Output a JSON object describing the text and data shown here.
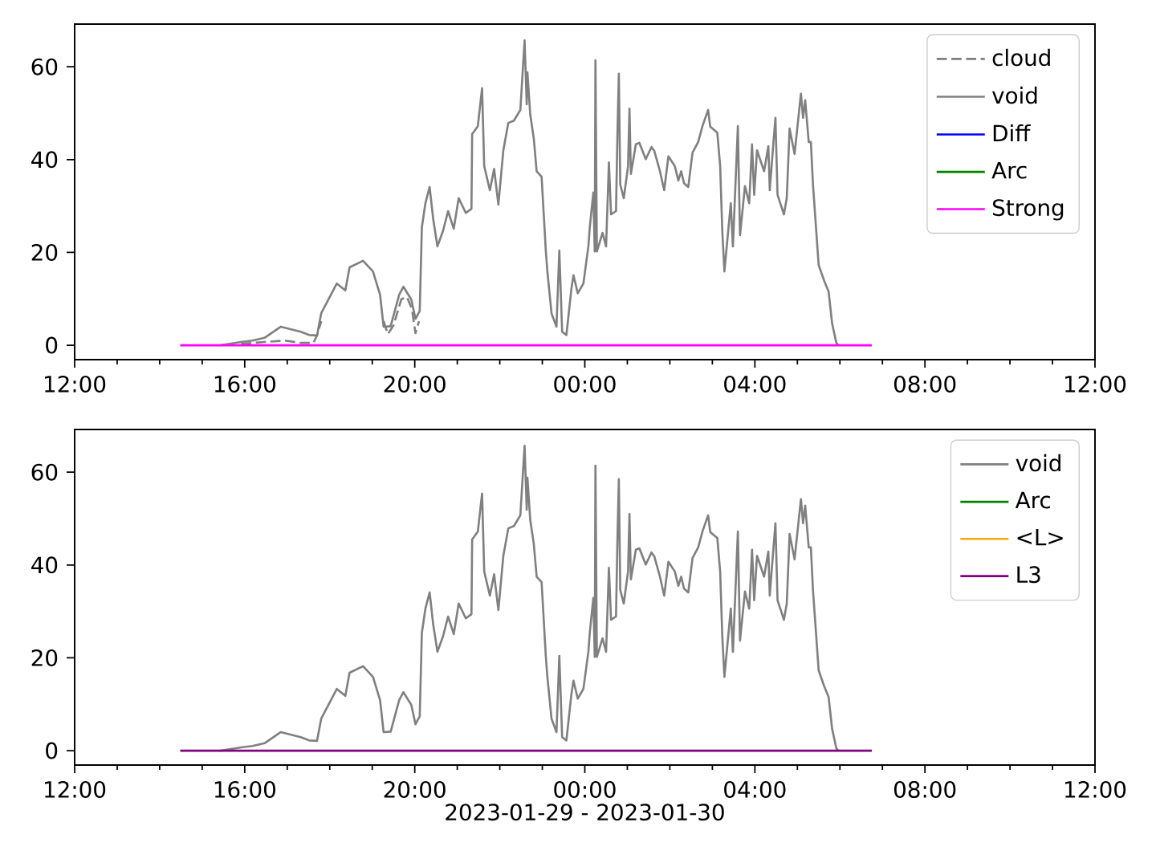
{
  "chart_data": [
    {
      "type": "line",
      "xlim": [
        "2023-01-29T12:00",
        "2023-01-30T12:00"
      ],
      "ylim": [
        -3.1,
        69.2
      ],
      "xticks": [
        {
          "value": "2023-01-29T12:00",
          "label": "12:00"
        },
        {
          "value": "2023-01-29T16:00",
          "label": "16:00"
        },
        {
          "value": "2023-01-29T20:00",
          "label": "20:00"
        },
        {
          "value": "2023-01-30T00:00",
          "label": "00:00"
        },
        {
          "value": "2023-01-30T04:00",
          "label": "04:00"
        },
        {
          "value": "2023-01-30T08:00",
          "label": "08:00"
        },
        {
          "value": "2023-01-30T12:00",
          "label": "12:00"
        }
      ],
      "yticks": [
        0,
        20,
        40,
        60
      ],
      "legend": "top right",
      "marker": "none",
      "series": [
        {
          "name": "cloud",
          "color": "#808080",
          "line_style": "dashed",
          "x": [
            "2023-01-29T15:55",
            "2023-01-29T16:28",
            "2023-01-29T16:57",
            "2023-01-29T17:19",
            "2023-01-29T17:37",
            "2023-01-29T17:42",
            "2023-01-29T17:48",
            "2023-01-29T18:30",
            "2023-01-29T19:16",
            "2023-01-29T19:22",
            "2023-01-29T19:30",
            "2023-01-29T19:41",
            "2023-01-29T19:49",
            "2023-01-29T19:56",
            "2023-01-29T20:01",
            "2023-01-29T20:06"
          ],
          "values": [
            0.3,
            0.7,
            1.0,
            0.5,
            0.5,
            2.1,
            5.2,
            null,
            5.2,
            2.4,
            4.3,
            9.9,
            10.4,
            7.8,
            2.6,
            5.2
          ]
        },
        {
          "name": "void",
          "color": "#808080",
          "x": [
            "2023-01-29T15:26",
            "2023-01-29T15:55",
            "2023-01-29T16:11",
            "2023-01-29T16:28",
            "2023-01-29T16:51",
            "2023-01-29T17:19",
            "2023-01-29T17:31",
            "2023-01-29T17:42",
            "2023-01-29T17:48",
            "2023-01-29T18:10",
            "2023-01-29T18:22",
            "2023-01-29T18:28",
            "2023-01-29T18:47",
            "2023-01-29T19:01",
            "2023-01-29T19:11",
            "2023-01-29T19:16",
            "2023-01-29T19:26",
            "2023-01-29T19:38",
            "2023-01-29T19:44",
            "2023-01-29T19:55",
            "2023-01-29T20:01",
            "2023-01-29T20:07",
            "2023-01-29T20:10",
            "2023-01-29T20:15",
            "2023-01-29T20:21",
            "2023-01-29T20:26",
            "2023-01-29T20:32",
            "2023-01-29T20:40",
            "2023-01-29T20:47",
            "2023-01-29T20:55",
            "2023-01-29T21:02",
            "2023-01-29T21:12",
            "2023-01-29T21:20",
            "2023-01-29T21:21",
            "2023-01-29T21:29",
            "2023-01-29T21:35",
            "2023-01-29T21:38",
            "2023-01-29T21:46",
            "2023-01-29T21:52",
            "2023-01-29T21:58",
            "2023-01-29T22:05",
            "2023-01-29T22:12",
            "2023-01-29T22:20",
            "2023-01-29T22:29",
            "2023-01-29T22:35",
            "2023-01-29T22:38",
            "2023-01-29T22:39",
            "2023-01-29T22:43",
            "2023-01-29T22:48",
            "2023-01-29T22:52",
            "2023-01-29T22:59",
            "2023-01-29T23:05",
            "2023-01-29T23:07",
            "2023-01-29T23:13",
            "2023-01-29T23:20",
            "2023-01-29T23:24",
            "2023-01-29T23:28",
            "2023-01-29T23:34",
            "2023-01-29T23:41",
            "2023-01-29T23:44",
            "2023-01-29T23:50",
            "2023-01-29T23:58",
            "2023-01-30T00:05",
            "2023-01-30T00:07",
            "2023-01-30T00:12",
            "2023-01-30T00:14",
            "2023-01-30T00:15",
            "2023-01-30T00:17",
            "2023-01-30T00:25",
            "2023-01-30T00:30",
            "2023-01-30T00:34",
            "2023-01-30T00:37",
            "2023-01-30T00:44",
            "2023-01-30T00:46",
            "2023-01-30T00:48",
            "2023-01-30T00:50",
            "2023-01-30T00:55",
            "2023-01-30T01:01",
            "2023-01-30T01:03",
            "2023-01-30T01:05",
            "2023-01-30T01:12",
            "2023-01-30T01:17",
            "2023-01-30T01:26",
            "2023-01-30T01:34",
            "2023-01-30T01:38",
            "2023-01-30T01:46",
            "2023-01-30T01:52",
            "2023-01-30T01:58",
            "2023-01-30T02:07",
            "2023-01-30T02:12",
            "2023-01-30T02:16",
            "2023-01-30T02:20",
            "2023-01-30T02:26",
            "2023-01-30T02:32",
            "2023-01-30T02:40",
            "2023-01-30T02:46",
            "2023-01-30T02:54",
            "2023-01-30T02:57",
            "2023-01-30T03:07",
            "2023-01-30T03:11",
            "2023-01-30T03:14",
            "2023-01-30T03:17",
            "2023-01-30T03:26",
            "2023-01-30T03:29",
            "2023-01-30T03:36",
            "2023-01-30T03:39",
            "2023-01-30T03:46",
            "2023-01-30T03:52",
            "2023-01-30T03:56",
            "2023-01-30T03:59",
            "2023-01-30T04:03",
            "2023-01-30T04:13",
            "2023-01-30T04:19",
            "2023-01-30T04:21",
            "2023-01-30T04:26",
            "2023-01-30T04:29",
            "2023-01-30T04:32",
            "2023-01-30T04:41",
            "2023-01-30T04:45",
            "2023-01-30T04:49",
            "2023-01-30T04:56",
            "2023-01-30T05:05",
            "2023-01-30T05:08",
            "2023-01-30T05:11",
            "2023-01-30T05:16",
            "2023-01-30T05:19",
            "2023-01-30T05:22",
            "2023-01-30T05:30",
            "2023-01-30T05:38",
            "2023-01-30T05:44",
            "2023-01-30T05:49",
            "2023-01-30T05:55",
            "2023-01-30T05:58"
          ],
          "values": [
            0,
            0.7,
            1.0,
            1.6,
            4.0,
            2.9,
            2.2,
            2.1,
            6.9,
            13.3,
            11.8,
            16.8,
            18.2,
            15.9,
            10.9,
            4.0,
            4.1,
            10.9,
            12.6,
            9.9,
            5.7,
            7.4,
            25.4,
            30.6,
            34.1,
            27.2,
            21.3,
            24.7,
            28.9,
            25.1,
            31.7,
            28.5,
            29.4,
            45.5,
            47.2,
            55.4,
            38.6,
            33.4,
            38.0,
            30.3,
            42.0,
            47.9,
            48.4,
            50.7,
            65.7,
            51.9,
            58.8,
            49.7,
            44.5,
            37.5,
            36.3,
            20.2,
            16.1,
            6.9,
            4.0,
            20.4,
            2.9,
            2.2,
            12.1,
            15.1,
            11.2,
            13.3,
            21.3,
            25.4,
            32.9,
            20.2,
            61.4,
            20.2,
            24.2,
            21.3,
            39.4,
            28.2,
            28.9,
            45.5,
            58.5,
            34.6,
            31.7,
            38.6,
            51.0,
            36.9,
            43.3,
            43.6,
            40.1,
            42.7,
            41.9,
            37.5,
            33.4,
            40.7,
            38.6,
            35.5,
            37.5,
            34.9,
            34.1,
            41.5,
            43.8,
            47.2,
            50.7,
            47.1,
            45.8,
            38.6,
            24.7,
            15.9,
            30.6,
            21.3,
            47.2,
            23.7,
            34.3,
            30.6,
            43.3,
            32.4,
            42.0,
            37.5,
            42.9,
            33.4,
            43.3,
            49.0,
            32.4,
            28.2,
            31.7,
            46.7,
            41.2,
            54.2,
            49.0,
            52.8,
            43.8,
            43.8,
            34.6,
            17.3,
            13.8,
            11.6,
            4.7,
            0.5,
            0
          ]
        },
        {
          "name": "Diff",
          "color": "#0000ff"
        },
        {
          "name": "Arc",
          "color": "#008000"
        },
        {
          "name": "Strong",
          "color": "#ff00ff",
          "x": [
            "2023-01-29T14:29",
            "2023-01-30T06:45"
          ],
          "values": [
            0,
            0
          ]
        }
      ]
    },
    {
      "type": "line",
      "xlabel": "2023-01-29 - 2023-01-30",
      "xlim": [
        "2023-01-29T12:00",
        "2023-01-30T12:00"
      ],
      "ylim": [
        -3.1,
        69.2
      ],
      "xticks": [
        {
          "value": "2023-01-29T12:00",
          "label": "12:00"
        },
        {
          "value": "2023-01-29T16:00",
          "label": "16:00"
        },
        {
          "value": "2023-01-29T20:00",
          "label": "20:00"
        },
        {
          "value": "2023-01-30T00:00",
          "label": "00:00"
        },
        {
          "value": "2023-01-30T04:00",
          "label": "04:00"
        },
        {
          "value": "2023-01-30T08:00",
          "label": "08:00"
        },
        {
          "value": "2023-01-30T12:00",
          "label": "12:00"
        }
      ],
      "yticks": [
        0,
        20,
        40,
        60
      ],
      "legend": "top right",
      "marker": "none",
      "series": [
        {
          "name": "void",
          "color": "#808080",
          "x": [
            "2023-01-29T15:26",
            "2023-01-29T15:55",
            "2023-01-29T16:11",
            "2023-01-29T16:28",
            "2023-01-29T16:51",
            "2023-01-29T17:19",
            "2023-01-29T17:31",
            "2023-01-29T17:42",
            "2023-01-29T17:48",
            "2023-01-29T18:10",
            "2023-01-29T18:22",
            "2023-01-29T18:28",
            "2023-01-29T18:47",
            "2023-01-29T19:01",
            "2023-01-29T19:11",
            "2023-01-29T19:16",
            "2023-01-29T19:26",
            "2023-01-29T19:38",
            "2023-01-29T19:44",
            "2023-01-29T19:55",
            "2023-01-29T20:01",
            "2023-01-29T20:07",
            "2023-01-29T20:10",
            "2023-01-29T20:15",
            "2023-01-29T20:21",
            "2023-01-29T20:26",
            "2023-01-29T20:32",
            "2023-01-29T20:40",
            "2023-01-29T20:47",
            "2023-01-29T20:55",
            "2023-01-29T21:02",
            "2023-01-29T21:12",
            "2023-01-29T21:20",
            "2023-01-29T21:21",
            "2023-01-29T21:29",
            "2023-01-29T21:35",
            "2023-01-29T21:38",
            "2023-01-29T21:46",
            "2023-01-29T21:52",
            "2023-01-29T21:58",
            "2023-01-29T22:05",
            "2023-01-29T22:12",
            "2023-01-29T22:20",
            "2023-01-29T22:29",
            "2023-01-29T22:35",
            "2023-01-29T22:38",
            "2023-01-29T22:39",
            "2023-01-29T22:43",
            "2023-01-29T22:48",
            "2023-01-29T22:52",
            "2023-01-29T22:59",
            "2023-01-29T23:05",
            "2023-01-29T23:07",
            "2023-01-29T23:13",
            "2023-01-29T23:20",
            "2023-01-29T23:24",
            "2023-01-29T23:28",
            "2023-01-29T23:34",
            "2023-01-29T23:41",
            "2023-01-29T23:44",
            "2023-01-29T23:50",
            "2023-01-29T23:58",
            "2023-01-30T00:05",
            "2023-01-30T00:07",
            "2023-01-30T00:12",
            "2023-01-30T00:14",
            "2023-01-30T00:15",
            "2023-01-30T00:17",
            "2023-01-30T00:25",
            "2023-01-30T00:30",
            "2023-01-30T00:34",
            "2023-01-30T00:37",
            "2023-01-30T00:44",
            "2023-01-30T00:46",
            "2023-01-30T00:48",
            "2023-01-30T00:50",
            "2023-01-30T00:55",
            "2023-01-30T01:01",
            "2023-01-30T01:03",
            "2023-01-30T01:05",
            "2023-01-30T01:12",
            "2023-01-30T01:17",
            "2023-01-30T01:26",
            "2023-01-30T01:34",
            "2023-01-30T01:38",
            "2023-01-30T01:46",
            "2023-01-30T01:52",
            "2023-01-30T01:58",
            "2023-01-30T02:07",
            "2023-01-30T02:12",
            "2023-01-30T02:16",
            "2023-01-30T02:20",
            "2023-01-30T02:26",
            "2023-01-30T02:32",
            "2023-01-30T02:40",
            "2023-01-30T02:46",
            "2023-01-30T02:54",
            "2023-01-30T02:57",
            "2023-01-30T03:07",
            "2023-01-30T03:11",
            "2023-01-30T03:14",
            "2023-01-30T03:17",
            "2023-01-30T03:26",
            "2023-01-30T03:29",
            "2023-01-30T03:36",
            "2023-01-30T03:39",
            "2023-01-30T03:46",
            "2023-01-30T03:52",
            "2023-01-30T03:56",
            "2023-01-30T03:59",
            "2023-01-30T04:03",
            "2023-01-30T04:13",
            "2023-01-30T04:19",
            "2023-01-30T04:21",
            "2023-01-30T04:26",
            "2023-01-30T04:29",
            "2023-01-30T04:32",
            "2023-01-30T04:41",
            "2023-01-30T04:45",
            "2023-01-30T04:49",
            "2023-01-30T04:56",
            "2023-01-30T05:05",
            "2023-01-30T05:08",
            "2023-01-30T05:11",
            "2023-01-30T05:16",
            "2023-01-30T05:19",
            "2023-01-30T05:22",
            "2023-01-30T05:30",
            "2023-01-30T05:38",
            "2023-01-30T05:44",
            "2023-01-30T05:49",
            "2023-01-30T05:55",
            "2023-01-30T05:58"
          ],
          "values": [
            0,
            0.7,
            1.0,
            1.6,
            4.0,
            2.9,
            2.2,
            2.1,
            6.9,
            13.3,
            11.8,
            16.8,
            18.2,
            15.9,
            10.9,
            4.0,
            4.1,
            10.9,
            12.6,
            9.9,
            5.7,
            7.4,
            25.4,
            30.6,
            34.1,
            27.2,
            21.3,
            24.7,
            28.9,
            25.1,
            31.7,
            28.5,
            29.4,
            45.5,
            47.2,
            55.4,
            38.6,
            33.4,
            38.0,
            30.3,
            42.0,
            47.9,
            48.4,
            50.7,
            65.7,
            51.9,
            58.8,
            49.7,
            44.5,
            37.5,
            36.3,
            20.2,
            16.1,
            6.9,
            4.0,
            20.4,
            2.9,
            2.2,
            12.1,
            15.1,
            11.2,
            13.3,
            21.3,
            25.4,
            32.9,
            20.2,
            61.4,
            20.2,
            24.2,
            21.3,
            39.4,
            28.2,
            28.9,
            45.5,
            58.5,
            34.6,
            31.7,
            38.6,
            51.0,
            36.9,
            43.3,
            43.6,
            40.1,
            42.7,
            41.9,
            37.5,
            33.4,
            40.7,
            38.6,
            35.5,
            37.5,
            34.9,
            34.1,
            41.5,
            43.8,
            47.2,
            50.7,
            47.1,
            45.8,
            38.6,
            24.7,
            15.9,
            30.6,
            21.3,
            47.2,
            23.7,
            34.3,
            30.6,
            43.3,
            32.4,
            42.0,
            37.5,
            42.9,
            33.4,
            43.3,
            49.0,
            32.4,
            28.2,
            31.7,
            46.7,
            41.2,
            54.2,
            49.0,
            52.8,
            43.8,
            43.8,
            34.6,
            17.3,
            13.8,
            11.6,
            4.7,
            0.5,
            0
          ]
        },
        {
          "name": "Arc",
          "color": "#008000"
        },
        {
          "name": "<L>",
          "color": "#ffa500"
        },
        {
          "name": "L3",
          "color": "#800080",
          "x": [
            "2023-01-29T14:29",
            "2023-01-30T06:45"
          ],
          "values": [
            0,
            0
          ]
        }
      ]
    }
  ]
}
